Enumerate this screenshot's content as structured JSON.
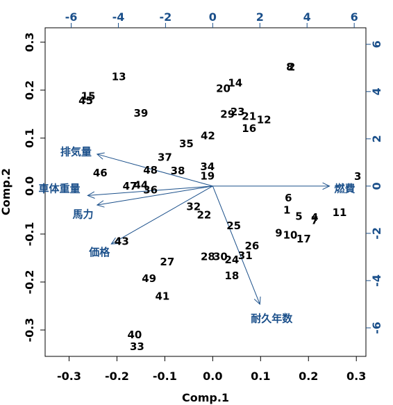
{
  "chart_data": {
    "type": "biplot",
    "xlabel": "Comp.1",
    "ylabel": "Comp.2",
    "xlim": [
      -0.35,
      0.32
    ],
    "ylim": [
      -0.355,
      0.33
    ],
    "x_ticks": [
      -0.3,
      -0.2,
      -0.1,
      0.0,
      0.1,
      0.2,
      0.3
    ],
    "x_tick_labels": [
      "-0.3",
      "-0.2",
      "-0.1",
      "0.0",
      "0.1",
      "0.2",
      "0.3"
    ],
    "y_ticks": [
      -0.3,
      -0.2,
      -0.1,
      0.0,
      0.1,
      0.2,
      0.3
    ],
    "y_tick_labels": [
      "-0.3",
      "-0.2",
      "-0.1",
      "0.0",
      "0.1",
      "0.2",
      "0.3"
    ],
    "top_ticks": [
      -6,
      -4,
      -2,
      0,
      2,
      4,
      6
    ],
    "top_tick_labels": [
      "-6",
      "-4",
      "-2",
      "0",
      "2",
      "4",
      "6"
    ],
    "right_ticks": [
      -6,
      -4,
      -2,
      0,
      2,
      4,
      6
    ],
    "right_tick_labels": [
      "-6",
      "-4",
      "-2",
      "0",
      "2",
      "4",
      "6"
    ],
    "secondary_scale": 20.3,
    "accent_color": "#1a4f8a",
    "observations": [
      {
        "label": "1",
        "x": 0.155,
        "y": -0.05
      },
      {
        "label": "2",
        "x": 0.165,
        "y": 0.248
      },
      {
        "label": "3",
        "x": 0.303,
        "y": 0.02
      },
      {
        "label": "4",
        "x": 0.213,
        "y": -0.065
      },
      {
        "label": "5",
        "x": 0.18,
        "y": -0.063
      },
      {
        "label": "6",
        "x": 0.158,
        "y": -0.025
      },
      {
        "label": "7",
        "x": 0.213,
        "y": -0.072
      },
      {
        "label": "8",
        "x": 0.161,
        "y": 0.248
      },
      {
        "label": "9",
        "x": 0.138,
        "y": -0.098
      },
      {
        "label": "10",
        "x": 0.162,
        "y": -0.102
      },
      {
        "label": "11",
        "x": 0.265,
        "y": -0.055
      },
      {
        "label": "12",
        "x": 0.107,
        "y": 0.138
      },
      {
        "label": "13",
        "x": -0.196,
        "y": 0.228
      },
      {
        "label": "14",
        "x": 0.047,
        "y": 0.215
      },
      {
        "label": "15",
        "x": -0.26,
        "y": 0.187
      },
      {
        "label": "16",
        "x": 0.076,
        "y": 0.12
      },
      {
        "label": "17",
        "x": 0.19,
        "y": -0.11
      },
      {
        "label": "18",
        "x": 0.04,
        "y": -0.187
      },
      {
        "label": "19",
        "x": -0.011,
        "y": 0.021
      },
      {
        "label": "20",
        "x": 0.022,
        "y": 0.203
      },
      {
        "label": "21",
        "x": 0.076,
        "y": 0.145
      },
      {
        "label": "22",
        "x": -0.018,
        "y": -0.06
      },
      {
        "label": "23",
        "x": 0.052,
        "y": 0.155
      },
      {
        "label": "24",
        "x": 0.04,
        "y": -0.154
      },
      {
        "label": "25",
        "x": 0.044,
        "y": -0.083
      },
      {
        "label": "26",
        "x": 0.082,
        "y": -0.125
      },
      {
        "label": "27",
        "x": -0.095,
        "y": -0.158
      },
      {
        "label": "28",
        "x": -0.01,
        "y": -0.147
      },
      {
        "label": "29",
        "x": 0.031,
        "y": 0.15
      },
      {
        "label": "30",
        "x": 0.016,
        "y": -0.147
      },
      {
        "label": "31",
        "x": 0.068,
        "y": -0.145
      },
      {
        "label": "32",
        "x": -0.04,
        "y": -0.043
      },
      {
        "label": "33",
        "x": -0.158,
        "y": -0.335
      },
      {
        "label": "34",
        "x": -0.011,
        "y": 0.04
      },
      {
        "label": "35",
        "x": -0.055,
        "y": 0.088
      },
      {
        "label": "36",
        "x": -0.13,
        "y": -0.008
      },
      {
        "label": "37",
        "x": -0.1,
        "y": 0.06
      },
      {
        "label": "38",
        "x": -0.073,
        "y": 0.032
      },
      {
        "label": "39",
        "x": -0.15,
        "y": 0.152
      },
      {
        "label": "40",
        "x": -0.163,
        "y": -0.31
      },
      {
        "label": "41",
        "x": -0.105,
        "y": -0.23
      },
      {
        "label": "42",
        "x": -0.01,
        "y": 0.105
      },
      {
        "label": "43",
        "x": -0.19,
        "y": -0.115
      },
      {
        "label": "44",
        "x": -0.15,
        "y": 0.002
      },
      {
        "label": "45",
        "x": -0.265,
        "y": 0.178
      },
      {
        "label": "46",
        "x": -0.235,
        "y": 0.027
      },
      {
        "label": "47",
        "x": -0.173,
        "y": 0.0
      },
      {
        "label": "48",
        "x": -0.13,
        "y": 0.033
      },
      {
        "label": "49",
        "x": -0.133,
        "y": -0.193
      }
    ],
    "variables": [
      {
        "name": "燃費",
        "x": 4.95,
        "y": 0.0,
        "label_x": 5.6,
        "label_y": -0.1
      },
      {
        "name": "排気量",
        "x": -4.9,
        "y": 1.35,
        "label_x": -5.8,
        "label_y": 1.45
      },
      {
        "name": "車体重量",
        "x": -5.3,
        "y": -0.4,
        "label_x": -6.5,
        "label_y": -0.1
      },
      {
        "name": "馬力",
        "x": -4.9,
        "y": -0.8,
        "label_x": -5.5,
        "label_y": -1.2
      },
      {
        "name": "価格",
        "x": -4.3,
        "y": -2.45,
        "label_x": -4.8,
        "label_y": -2.8
      },
      {
        "name": "耐久年数",
        "x": 2.0,
        "y": -5.0,
        "label_x": 2.5,
        "label_y": -5.6
      }
    ]
  }
}
